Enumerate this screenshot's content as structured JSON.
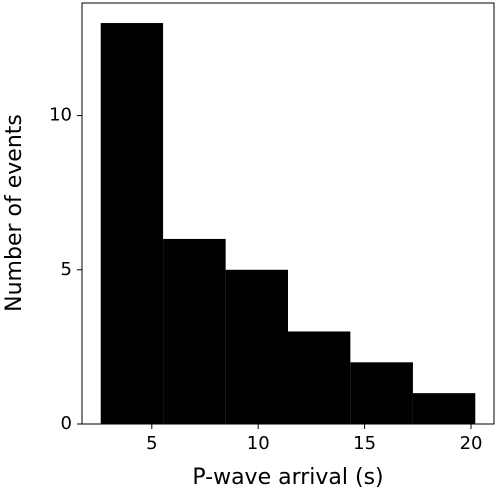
{
  "chart_data": {
    "type": "histogram",
    "xlabel": "P-wave arrival (s)",
    "ylabel": "Number of events",
    "bins": [
      2.6,
      5.53,
      8.47,
      11.4,
      14.33,
      17.27,
      20.2
    ],
    "counts": [
      13,
      6,
      5,
      3,
      2,
      1
    ],
    "color": "#000000",
    "xlim": [
      1.72,
      21.08
    ],
    "xticks": [
      5,
      10,
      15,
      20
    ],
    "ylim": [
      0,
      13.65
    ],
    "yticks": [
      0,
      5,
      10
    ]
  }
}
